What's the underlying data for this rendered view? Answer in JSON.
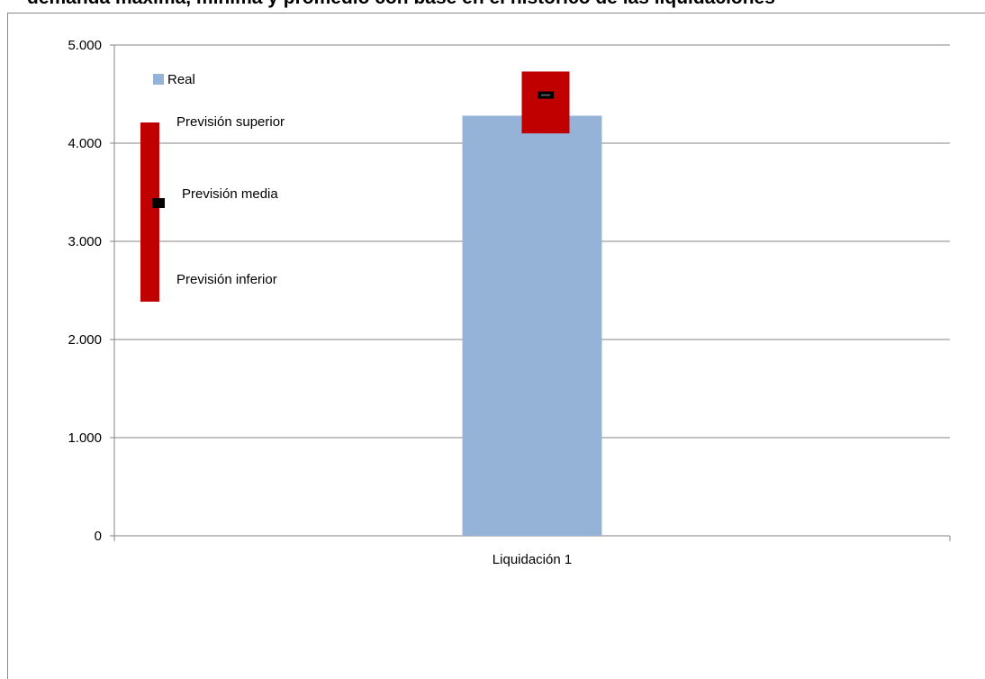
{
  "chart_data": {
    "type": "bar",
    "title": "demanda máxima, mínima y promedio con base en el histórico de las liquidaciones",
    "categories": [
      "Liquidación 1"
    ],
    "series": [
      {
        "name": "Real",
        "values": [
          4280
        ]
      }
    ],
    "forecast": {
      "upper": [
        4730
      ],
      "mean": [
        4490
      ],
      "lower": [
        4100
      ]
    },
    "ylim": [
      0,
      5000
    ],
    "yticks": [
      0,
      1000,
      2000,
      3000,
      4000,
      5000
    ],
    "ytick_labels": [
      "0",
      "1.000",
      "2.000",
      "3.000",
      "4.000",
      "5.000"
    ],
    "grid": true,
    "legend": {
      "placement": "top-left",
      "labels": {
        "upper": "Previsión superior",
        "mean": "Previsión media",
        "lower": "Previsión inferior"
      }
    },
    "colors": {
      "real": "#95B3D7",
      "forecast": "#C00000",
      "mean_marker": "#000000",
      "grid": "#868686"
    }
  }
}
